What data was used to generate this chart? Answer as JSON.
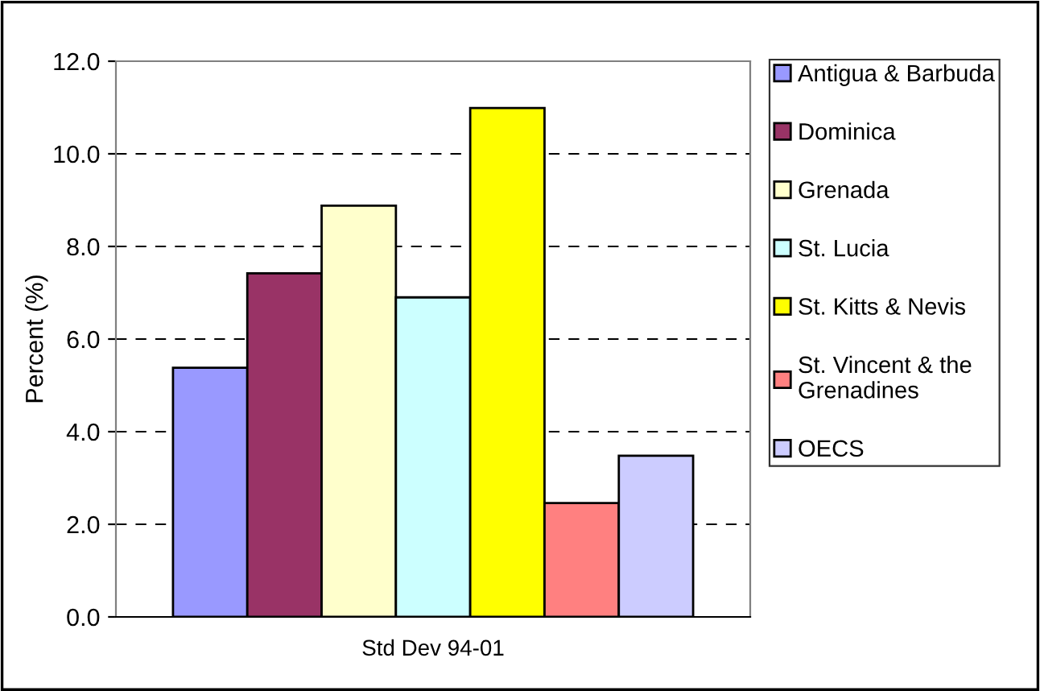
{
  "chart_data": {
    "type": "bar",
    "categories": [
      "Std Dev 94-01"
    ],
    "ylabel": "Percent (%)",
    "ylim": [
      0,
      12
    ],
    "yticks": [
      {
        "value": 0,
        "label": "0.0"
      },
      {
        "value": 2,
        "label": "2.0"
      },
      {
        "value": 4,
        "label": "4.0"
      },
      {
        "value": 6,
        "label": "6.0"
      },
      {
        "value": 8,
        "label": "8.0"
      },
      {
        "value": 10,
        "label": "10.0"
      },
      {
        "value": 12,
        "label": "12.0"
      }
    ],
    "grid": "y",
    "legend": "right",
    "series": [
      {
        "name": "Antigua & Barbuda",
        "color": "#9999ff",
        "values": [
          5.38
        ]
      },
      {
        "name": "Dominica",
        "color": "#993366",
        "values": [
          7.42
        ]
      },
      {
        "name": "Grenada",
        "color": "#ffffcc",
        "values": [
          8.88
        ]
      },
      {
        "name": "St. Lucia",
        "color": "#ccffff",
        "values": [
          6.9
        ]
      },
      {
        "name": "St. Kitts & Nevis",
        "color": "#ffff00",
        "values": [
          10.99
        ]
      },
      {
        "name": "St. Vincent & the\nGrenadines",
        "color": "#ff8080",
        "values": [
          2.46
        ]
      },
      {
        "name": "OECS",
        "color": "#ccccff",
        "values": [
          3.48
        ]
      }
    ]
  }
}
